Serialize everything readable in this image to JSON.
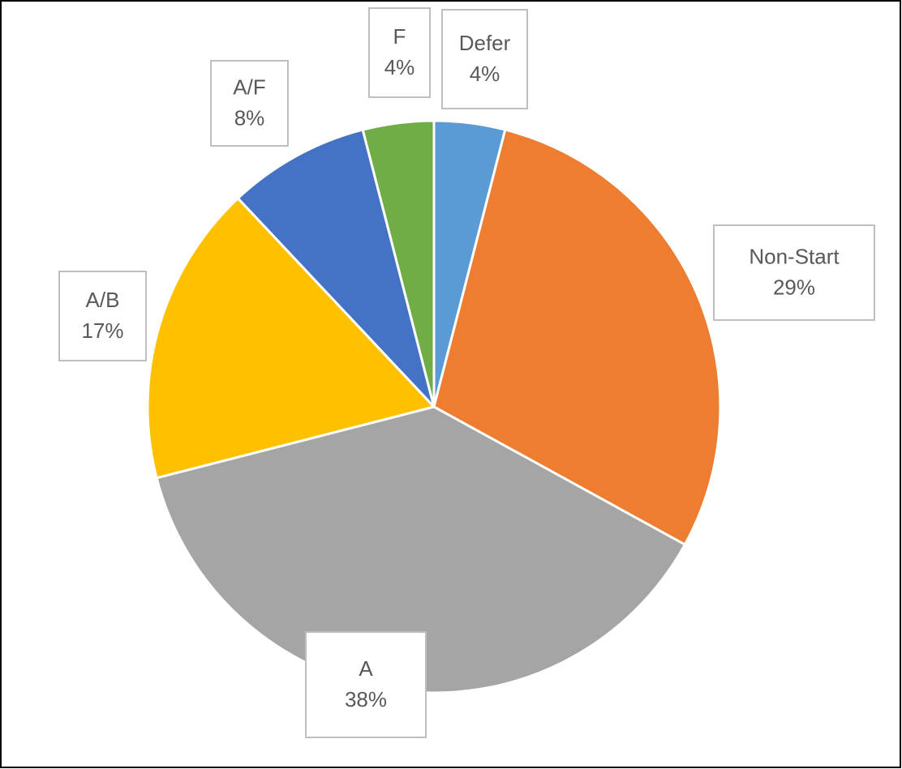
{
  "chart_data": {
    "type": "pie",
    "categories": [
      "Defer",
      "Non-Start",
      "A",
      "A/B",
      "A/F",
      "F"
    ],
    "values": [
      4,
      29,
      38,
      17,
      8,
      4
    ],
    "value_labels": [
      "4%",
      "29%",
      "38%",
      "17%",
      "8%",
      "4%"
    ],
    "colors": [
      "#5b9bd5",
      "#ed7d31",
      "#a5a5a5",
      "#ffc000",
      "#4472c4",
      "#70ad47"
    ]
  }
}
